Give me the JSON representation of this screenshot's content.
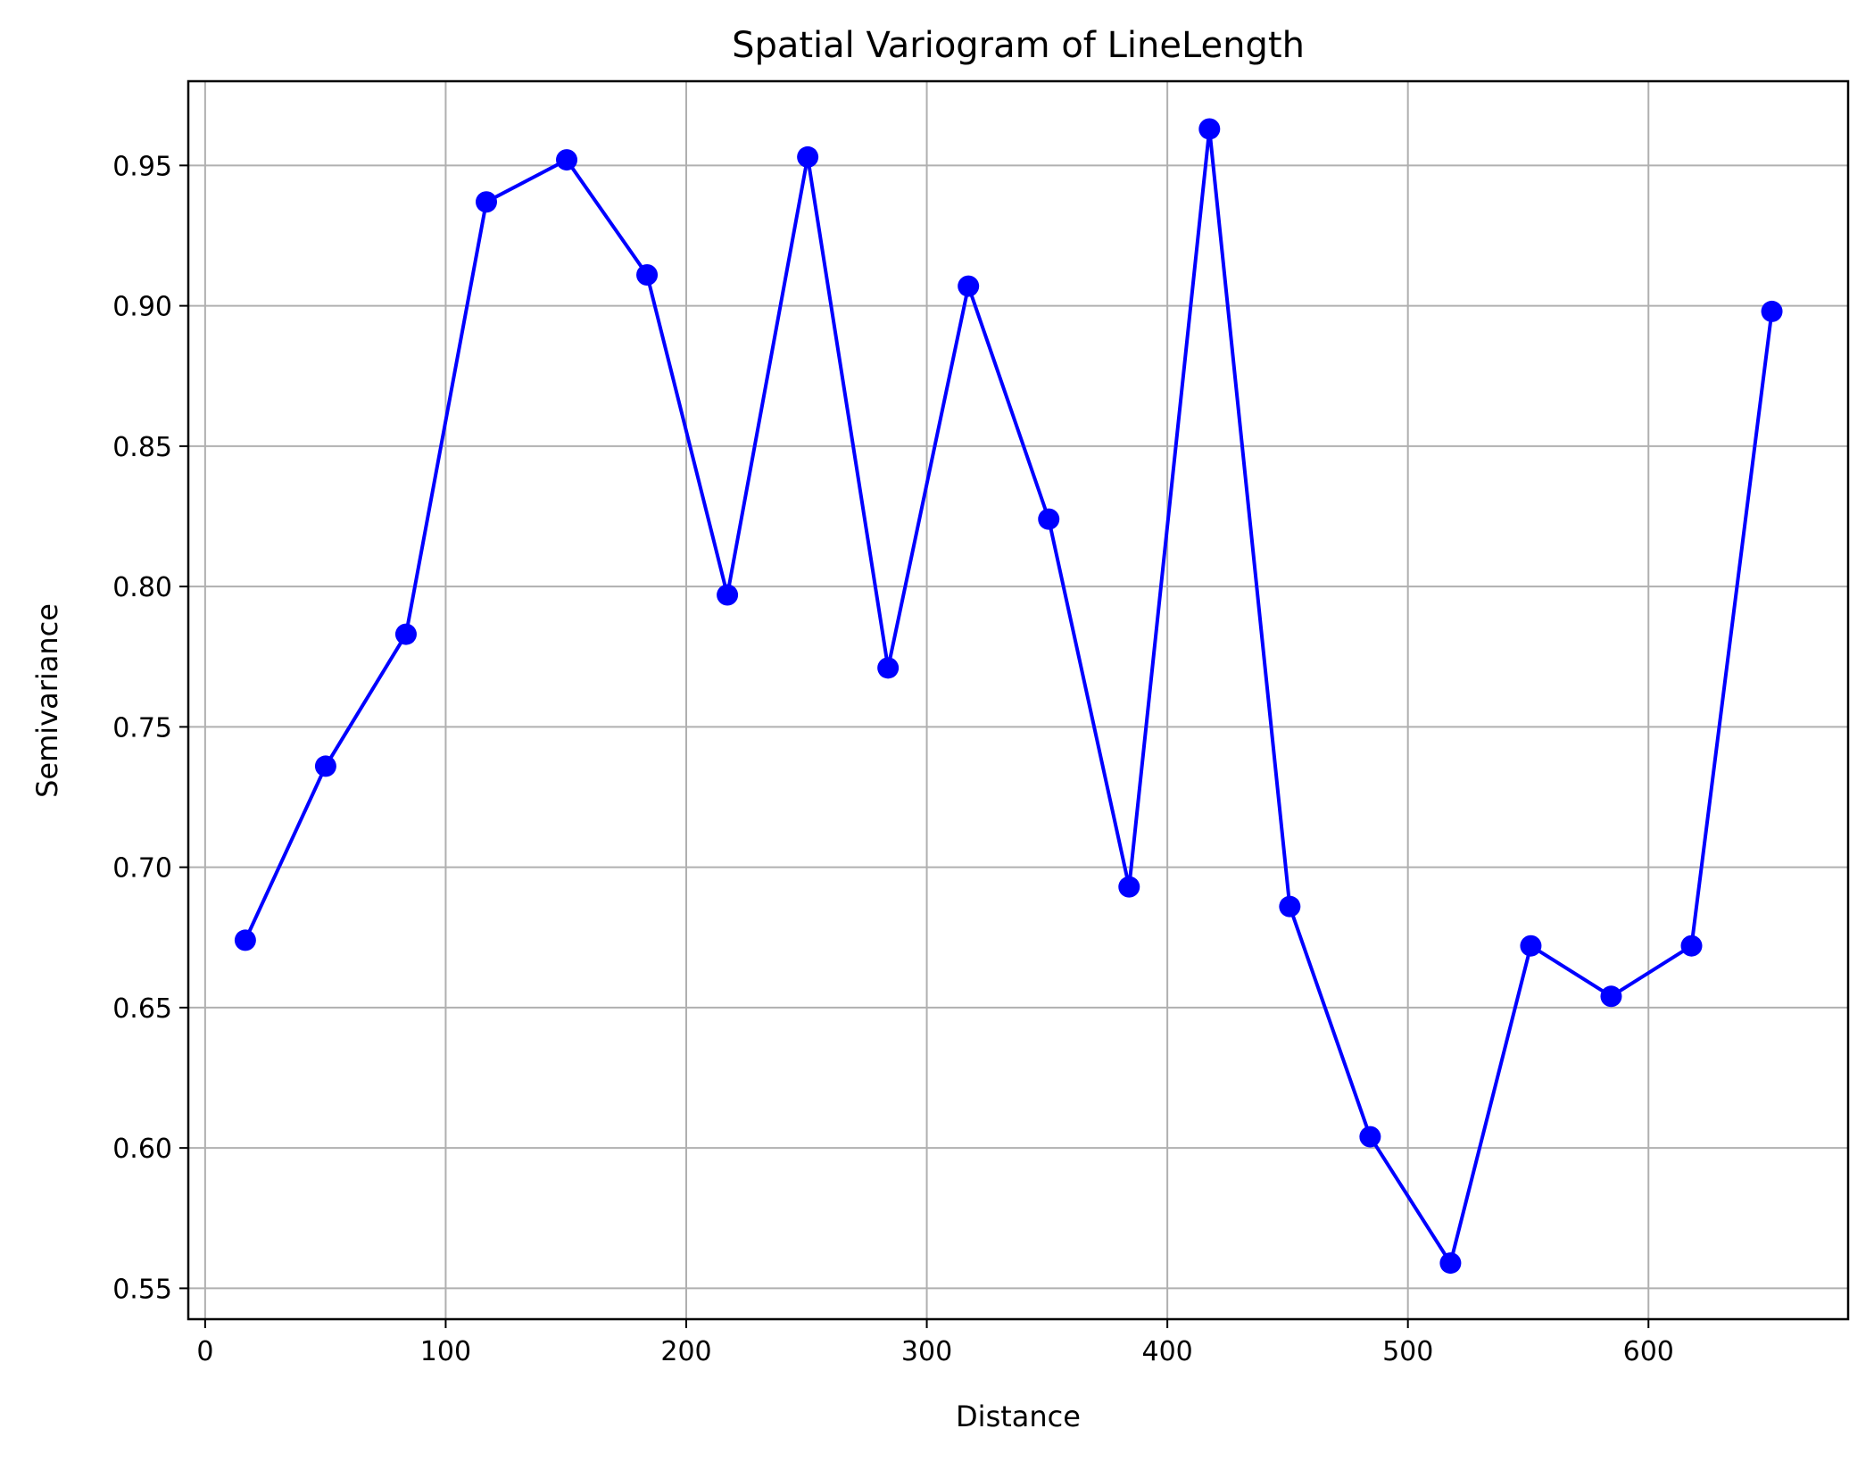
{
  "chart_data": {
    "type": "line",
    "title": "Spatial Variogram of LineLength",
    "xlabel": "Distance",
    "ylabel": "Semivariance",
    "xlim": [
      -7,
      683
    ],
    "ylim": [
      0.539,
      0.98
    ],
    "xticks": [
      0,
      100,
      200,
      300,
      400,
      500,
      600
    ],
    "xtick_labels": [
      "0",
      "100",
      "200",
      "300",
      "400",
      "500",
      "600"
    ],
    "yticks": [
      0.55,
      0.6,
      0.65,
      0.7,
      0.75,
      0.8,
      0.85,
      0.9,
      0.95
    ],
    "ytick_labels": [
      "0.55",
      "0.60",
      "0.65",
      "0.70",
      "0.75",
      "0.80",
      "0.85",
      "0.90",
      "0.95"
    ],
    "grid": true,
    "series": [
      {
        "color": "#0000ff",
        "marker": "circle",
        "x": [
          16.7,
          50.1,
          83.5,
          116.9,
          150.3,
          183.7,
          217.1,
          250.5,
          283.9,
          317.3,
          350.7,
          384.1,
          417.5,
          450.9,
          484.3,
          517.7,
          551.1,
          584.5,
          617.9,
          651.3
        ],
        "values": [
          0.674,
          0.736,
          0.783,
          0.937,
          0.952,
          0.911,
          0.797,
          0.953,
          0.771,
          0.907,
          0.824,
          0.693,
          0.963,
          0.686,
          0.604,
          0.559,
          0.672,
          0.654,
          0.672,
          0.898
        ]
      }
    ]
  }
}
